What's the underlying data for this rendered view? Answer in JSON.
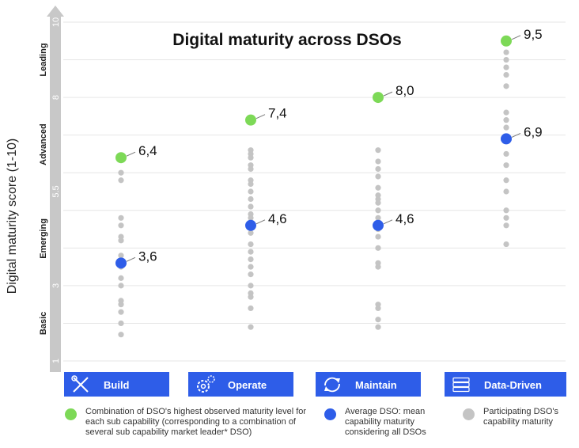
{
  "chart_data": {
    "type": "scatter",
    "title": "Digital maturity across DSOs",
    "ylabel": "Digital maturity score (1-10)",
    "ylim": [
      1,
      10
    ],
    "y_tick_labels": [
      {
        "value": 10,
        "label": "10"
      },
      {
        "value": 8,
        "label": "8"
      },
      {
        "value": 5.5,
        "label": "5.5"
      },
      {
        "value": 3,
        "label": "3"
      },
      {
        "value": 1,
        "label": "1"
      }
    ],
    "y_bands": [
      {
        "label": "Leading",
        "range": [
          8,
          10
        ]
      },
      {
        "label": "Advanced",
        "range": [
          5.5,
          8
        ]
      },
      {
        "label": "Emerging",
        "range": [
          3,
          5.5
        ]
      },
      {
        "label": "Basic",
        "range": [
          1,
          3
        ]
      }
    ],
    "grid": true,
    "categories": [
      {
        "label": "Build",
        "icon": "tools-icon"
      },
      {
        "label": "Operate",
        "icon": "gears-icon"
      },
      {
        "label": "Maintain",
        "icon": "refresh-icon"
      },
      {
        "label": "Data-Driven",
        "icon": "server-icon"
      }
    ],
    "series": [
      {
        "name": "Combination of DSO's highest observed maturity level for each sub capability (corresponding to a combination of several sub capability market leader* DSO)",
        "color": "#7dd957",
        "values": [
          6.4,
          7.4,
          8.0,
          9.5
        ],
        "labels": [
          "6,4",
          "7,4",
          "8,0",
          "9,5"
        ]
      },
      {
        "name": "Average DSO: mean capability maturity considering all DSOs",
        "color": "#2e5de8",
        "values": [
          3.6,
          4.6,
          4.6,
          6.9
        ],
        "labels": [
          "3,6",
          "4,6",
          "4,6",
          "6,9"
        ]
      },
      {
        "name": "Participating DSO's capability maturity",
        "color": "#c4c4c4",
        "points": [
          [
            6.0,
            5.8,
            4.8,
            4.6,
            4.3,
            4.2,
            3.8,
            3.5,
            3.2,
            3.0,
            2.6,
            2.5,
            2.3,
            2.0,
            1.7
          ],
          [
            6.6,
            6.5,
            6.4,
            6.2,
            6.1,
            5.8,
            5.7,
            5.5,
            5.3,
            5.1,
            4.9,
            4.8,
            4.4,
            4.1,
            3.9,
            3.7,
            3.5,
            3.3,
            3.0,
            2.8,
            2.7,
            2.4,
            1.9
          ],
          [
            6.6,
            6.3,
            6.1,
            5.9,
            5.6,
            5.4,
            5.3,
            5.2,
            5.0,
            4.8,
            4.6,
            4.5,
            4.3,
            4.0,
            3.6,
            3.5,
            2.5,
            2.4,
            2.1,
            1.9
          ],
          [
            9.2,
            9.0,
            8.8,
            8.6,
            8.3,
            7.6,
            7.4,
            7.2,
            6.5,
            6.2,
            5.8,
            5.5,
            5.0,
            4.8,
            4.6,
            4.1
          ]
        ]
      }
    ],
    "legend": {
      "placement": "bottom",
      "items": [
        "Combination of DSO's highest observed maturity level for each sub capability (corresponding to a combination of several sub capability market leader* DSO)",
        "Average DSO: mean capability maturity considering all DSOs",
        "Participating DSO's capability maturity"
      ]
    }
  },
  "colors": {
    "accent": "#2e5de8",
    "green": "#7dd957",
    "grey": "#c4c4c4",
    "grid": "#e6e6e6",
    "axis": "#c8c8c8"
  }
}
